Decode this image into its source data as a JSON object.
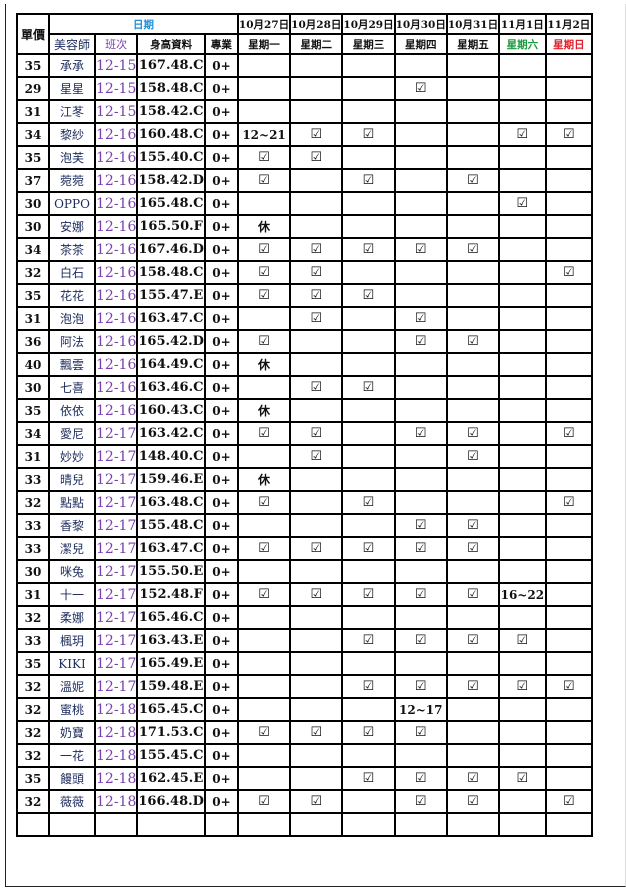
{
  "header": {
    "price": "單價",
    "date_group": "日期",
    "name": "美容師",
    "class": "班次",
    "height": "身高資料",
    "pro": "專業",
    "dates": [
      "10月27日",
      "10月28日",
      "10月29日",
      "10月30日",
      "10月31日",
      "11月1日",
      "11月2日"
    ],
    "weekdays": [
      "星期一",
      "星期二",
      "星期三",
      "星期四",
      "星期五",
      "星期六",
      "星期日"
    ]
  },
  "colors": {
    "date_group": "#1e8fd6",
    "class": "#7a3fb0",
    "saturday": "#1a9a3a",
    "sunday": "#e0202a"
  },
  "check_icon": "☑",
  "rows": [
    {
      "price": "35",
      "name": "承承",
      "class": "12-15",
      "height": "167.48.C",
      "pro": "0+",
      "days": [
        "",
        "",
        "",
        "",
        "",
        "",
        ""
      ]
    },
    {
      "price": "29",
      "name": "星星",
      "class": "12-15",
      "height": "158.48.C",
      "pro": "0+",
      "days": [
        "",
        "",
        "",
        "☑",
        "",
        "",
        ""
      ]
    },
    {
      "price": "31",
      "name": "江苳",
      "class": "12-15",
      "height": "158.42.C",
      "pro": "0+",
      "days": [
        "",
        "",
        "",
        "",
        "",
        "",
        ""
      ]
    },
    {
      "price": "34",
      "name": "黎紗",
      "class": "12-16",
      "height": "160.48.C",
      "pro": "0+",
      "days": [
        "12~21",
        "☑",
        "☑",
        "",
        "",
        "☑",
        "☑"
      ]
    },
    {
      "price": "35",
      "name": "泡芙",
      "class": "12-16",
      "height": "155.40.C",
      "pro": "0+",
      "days": [
        "☑",
        "☑",
        "",
        "",
        "",
        "",
        ""
      ]
    },
    {
      "price": "37",
      "name": "菀菀",
      "class": "12-16",
      "height": "158.42.D",
      "pro": "0+",
      "days": [
        "☑",
        "",
        "☑",
        "",
        "☑",
        "",
        ""
      ]
    },
    {
      "price": "30",
      "name": "OPPO",
      "class": "12-16",
      "height": "165.48.C",
      "pro": "0+",
      "days": [
        "",
        "",
        "",
        "",
        "",
        "☑",
        ""
      ]
    },
    {
      "price": "30",
      "name": "安娜",
      "class": "12-16",
      "height": "165.50.F",
      "pro": "0+",
      "days": [
        "休",
        "",
        "",
        "",
        "",
        "",
        ""
      ]
    },
    {
      "price": "34",
      "name": "茶茶",
      "class": "12-16",
      "height": "167.46.D",
      "pro": "0+",
      "days": [
        "☑",
        "☑",
        "☑",
        "☑",
        "☑",
        "",
        ""
      ]
    },
    {
      "price": "32",
      "name": "白石",
      "class": "12-16",
      "height": "158.48.C",
      "pro": "0+",
      "days": [
        "☑",
        "☑",
        "",
        "",
        "",
        "",
        "☑"
      ]
    },
    {
      "price": "35",
      "name": "花花",
      "class": "12-16",
      "height": "155.47.E",
      "pro": "0+",
      "days": [
        "☑",
        "☑",
        "☑",
        "",
        "",
        "",
        ""
      ]
    },
    {
      "price": "31",
      "name": "泡泡",
      "class": "12-16",
      "height": "163.47.C",
      "pro": "0+",
      "days": [
        "",
        "☑",
        "",
        "☑",
        "",
        "",
        ""
      ]
    },
    {
      "price": "36",
      "name": "阿法",
      "class": "12-16",
      "height": "165.42.D",
      "pro": "0+",
      "days": [
        "☑",
        "",
        "",
        "☑",
        "☑",
        "",
        ""
      ]
    },
    {
      "price": "40",
      "name": "飄雲",
      "class": "12-16",
      "height": "164.49.C",
      "pro": "0+",
      "days": [
        "休",
        "",
        "",
        "",
        "",
        "",
        ""
      ]
    },
    {
      "price": "30",
      "name": "七喜",
      "class": "12-16",
      "height": "163.46.C",
      "pro": "0+",
      "days": [
        "",
        "☑",
        "☑",
        "",
        "",
        "",
        ""
      ]
    },
    {
      "price": "35",
      "name": "依依",
      "class": "12-16",
      "height": "160.43.C",
      "pro": "0+",
      "days": [
        "休",
        "",
        "",
        "",
        "",
        "",
        ""
      ]
    },
    {
      "price": "34",
      "name": "愛尼",
      "class": "12-17",
      "height": "163.42.C",
      "pro": "0+",
      "days": [
        "☑",
        "☑",
        "",
        "☑",
        "☑",
        "",
        "☑"
      ]
    },
    {
      "price": "31",
      "name": "妙妙",
      "class": "12-17",
      "height": "148.40.C",
      "pro": "0+",
      "days": [
        "",
        "☑",
        "",
        "",
        "☑",
        "",
        ""
      ]
    },
    {
      "price": "33",
      "name": "晴兒",
      "class": "12-17",
      "height": "159.46.E",
      "pro": "0+",
      "days": [
        "休",
        "",
        "",
        "",
        "",
        "",
        ""
      ]
    },
    {
      "price": "32",
      "name": "點點",
      "class": "12-17",
      "height": "163.48.C",
      "pro": "0+",
      "days": [
        "☑",
        "",
        "☑",
        "",
        "",
        "",
        "☑"
      ]
    },
    {
      "price": "33",
      "name": "香黎",
      "class": "12-17",
      "height": "155.48.C",
      "pro": "0+",
      "days": [
        "",
        "",
        "",
        "☑",
        "☑",
        "",
        ""
      ]
    },
    {
      "price": "33",
      "name": "潔兒",
      "class": "12-17",
      "height": "163.47.C",
      "pro": "0+",
      "days": [
        "☑",
        "☑",
        "☑",
        "☑",
        "☑",
        "",
        ""
      ]
    },
    {
      "price": "30",
      "name": "咪兔",
      "class": "12-17",
      "height": "155.50.E",
      "pro": "0+",
      "days": [
        "",
        "",
        "",
        "",
        "",
        "",
        ""
      ]
    },
    {
      "price": "31",
      "name": "十一",
      "class": "12-17",
      "height": "152.48.F",
      "pro": "0+",
      "days": [
        "☑",
        "☑",
        "☑",
        "☑",
        "☑",
        "16~22",
        ""
      ]
    },
    {
      "price": "32",
      "name": "柔娜",
      "class": "12-17",
      "height": "165.46.C",
      "pro": "0+",
      "days": [
        "",
        "",
        "",
        "",
        "",
        "",
        ""
      ]
    },
    {
      "price": "33",
      "name": "楓玥",
      "class": "12-17",
      "height": "163.43.E",
      "pro": "0+",
      "days": [
        "",
        "",
        "☑",
        "☑",
        "☑",
        "☑",
        ""
      ]
    },
    {
      "price": "35",
      "name": "KIKI",
      "class": "12-17",
      "height": "165.49.E",
      "pro": "0+",
      "days": [
        "",
        "",
        "",
        "",
        "",
        "",
        ""
      ]
    },
    {
      "price": "32",
      "name": "溫妮",
      "class": "12-17",
      "height": "159.48.E",
      "pro": "0+",
      "days": [
        "",
        "",
        "☑",
        "☑",
        "☑",
        "☑",
        "☑"
      ]
    },
    {
      "price": "32",
      "name": "蜜桃",
      "class": "12-18",
      "height": "165.45.C",
      "pro": "0+",
      "days": [
        "",
        "",
        "",
        "12~17",
        "",
        "",
        ""
      ]
    },
    {
      "price": "32",
      "name": "奶寶",
      "class": "12-18",
      "height": "171.53.C",
      "pro": "0+",
      "days": [
        "☑",
        "☑",
        "☑",
        "☑",
        "",
        "",
        ""
      ]
    },
    {
      "price": "32",
      "name": "一花",
      "class": "12-18",
      "height": "155.45.C",
      "pro": "0+",
      "days": [
        "",
        "",
        "",
        "",
        "",
        "",
        ""
      ]
    },
    {
      "price": "35",
      "name": "饅頭",
      "class": "12-18",
      "height": "162.45.E",
      "pro": "0+",
      "days": [
        "",
        "",
        "☑",
        "☑",
        "☑",
        "☑",
        ""
      ]
    },
    {
      "price": "32",
      "name": "薇薇",
      "class": "12-18",
      "height": "166.48.D",
      "pro": "0+",
      "days": [
        "☑",
        "☑",
        "",
        "☑",
        "☑",
        "",
        "☑"
      ]
    }
  ]
}
